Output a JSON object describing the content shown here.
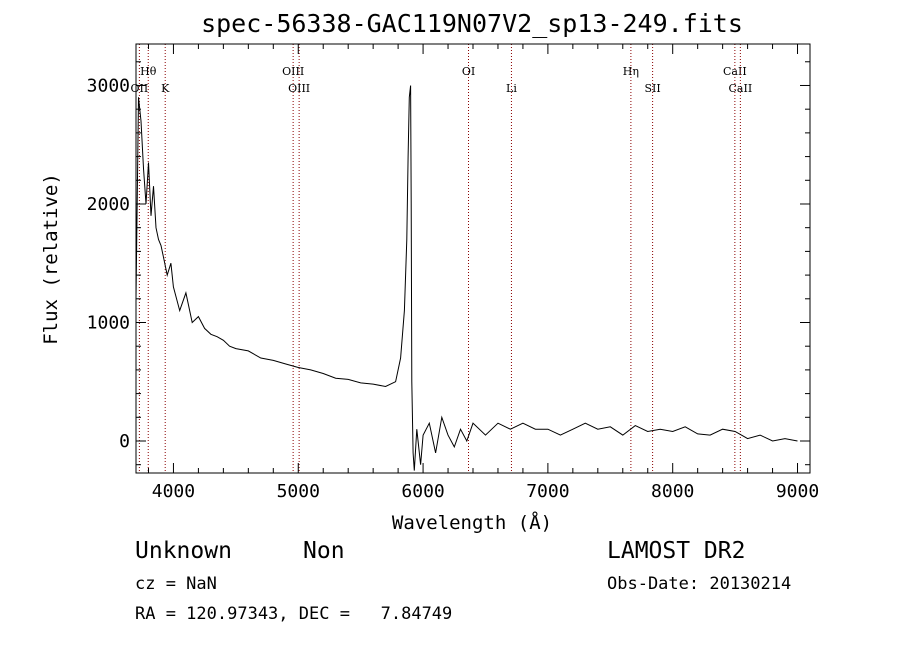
{
  "chart_data": {
    "type": "line",
    "title": "spec-56338-GAC119N07V2_sp13-249.fits",
    "xlabel": "Wavelength (Å)",
    "ylabel": "Flux (relative)",
    "xlim": [
      3700,
      9100
    ],
    "ylim": [
      -270,
      3350
    ],
    "x_ticks": [
      4000,
      5000,
      6000,
      7000,
      8000,
      9000
    ],
    "x_tick_labels": [
      "4000",
      "5000",
      "6000",
      "7000",
      "8000",
      "9000"
    ],
    "y_ticks": [
      0,
      1000,
      2000,
      3000
    ],
    "y_tick_labels": [
      "0",
      "1000",
      "2000",
      "3000"
    ],
    "grid": false,
    "series": [
      {
        "x": [
          3700,
          3720,
          3740,
          3760,
          3780,
          3800,
          3820,
          3840,
          3860,
          3880,
          3900,
          3920,
          3950,
          3980,
          4000,
          4050,
          4100,
          4150,
          4200,
          4250,
          4300,
          4350,
          4400,
          4450,
          4500,
          4600,
          4700,
          4800,
          4900,
          5000,
          5100,
          5200,
          5300,
          5400,
          5500,
          5600,
          5700,
          5780,
          5820,
          5850,
          5870,
          5880,
          5890,
          5900,
          5905,
          5910,
          5920,
          5930,
          5950,
          5980,
          6000,
          6050,
          6100,
          6150,
          6200,
          6250,
          6300,
          6350,
          6400,
          6500,
          6600,
          6700,
          6800,
          6900,
          7000,
          7100,
          7200,
          7300,
          7400,
          7500,
          7600,
          7700,
          7800,
          7900,
          8000,
          8100,
          8200,
          8300,
          8400,
          8500,
          8600,
          8700,
          8800,
          8900,
          9000
        ],
        "y": [
          1200,
          2900,
          2700,
          2300,
          2000,
          2350,
          1900,
          2150,
          1800,
          1700,
          1650,
          1550,
          1400,
          1500,
          1300,
          1100,
          1250,
          1000,
          1050,
          950,
          900,
          880,
          850,
          800,
          780,
          760,
          700,
          680,
          650,
          620,
          600,
          570,
          530,
          520,
          490,
          480,
          460,
          500,
          700,
          1100,
          1700,
          2400,
          2900,
          3000,
          2000,
          500,
          -100,
          -250,
          100,
          -200,
          50,
          150,
          -100,
          200,
          50,
          -50,
          100,
          0,
          150,
          50,
          150,
          100,
          150,
          100,
          100,
          50,
          100,
          150,
          100,
          120,
          50,
          130,
          80,
          100,
          80,
          120,
          60,
          50,
          100,
          80,
          20,
          50,
          0,
          20,
          0
        ]
      }
    ],
    "annotations": [
      {
        "label": "OII",
        "x": 3727
      },
      {
        "label": "Hθ",
        "x": 3798
      },
      {
        "label": "K",
        "x": 3934
      },
      {
        "label": "OIII",
        "x": 4959
      },
      {
        "label": "OIII",
        "x": 5007
      },
      {
        "label": "OI",
        "x": 6364
      },
      {
        "label": "Li",
        "x": 6708
      },
      {
        "label": "Hη",
        "x": 7665
      },
      {
        "label": "SII",
        "x": 7839
      },
      {
        "label": "CaII",
        "x": 8498
      },
      {
        "label": "CaII",
        "x": 8542
      }
    ],
    "colors": {
      "spectrum": "#000000",
      "marker_line": "#8b0000",
      "axes": "#000000"
    }
  },
  "info": {
    "object_class": "Unknown",
    "subclass": "Non",
    "survey": "LAMOST DR2",
    "cz": "cz = NaN",
    "obs_date": "Obs-Date: 20130214",
    "coords": "RA = 120.97343, DEC =   7.84749"
  }
}
